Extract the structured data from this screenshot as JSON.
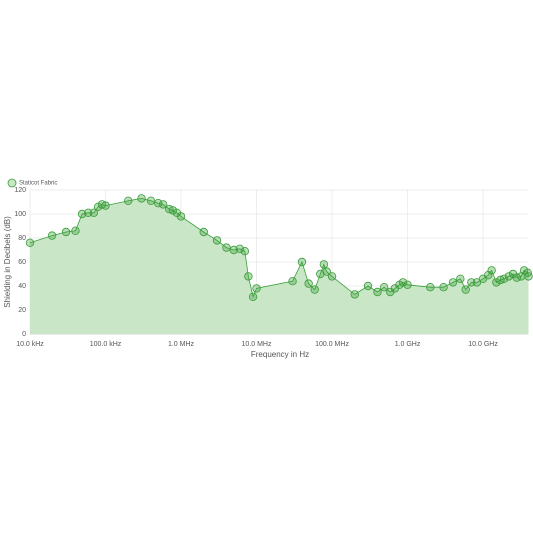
{
  "chart_data": {
    "type": "area",
    "xlabel": "Frequency in Hz",
    "ylabel": "Shielding in Decibels (dB)",
    "xscale": "log",
    "grid": true,
    "legend": "top-left",
    "x": [
      10000,
      19600,
      30000,
      40000,
      49000,
      59000,
      70000,
      80000,
      90000,
      100000,
      200000,
      300000,
      400000,
      500000,
      580000,
      700000,
      780000,
      880000,
      1000000,
      2000000,
      3000000,
      4000000,
      5000000,
      6000000,
      7000000,
      7800000,
      9000000,
      10000000,
      30000000,
      40000000,
      49000000,
      59000000,
      70000000,
      78000000,
      85000000,
      100000000,
      200000000,
      300000000,
      400000000,
      490000000,
      590000000,
      680000000,
      780000000,
      870000000,
      1000000000,
      2000000000,
      3000000000,
      4000000000,
      5000000000,
      5900000000,
      7000000000,
      8300000000,
      10000000000,
      11700000000,
      13000000000,
      15000000000,
      17000000000,
      19000000000,
      22000000000,
      25000000000,
      28000000000,
      32000000000,
      35000000000,
      39000000000,
      40000000000
    ],
    "series": [
      {
        "name": "Staticot Fabric",
        "color": "#3a9e3a",
        "fill": "#c9e6c6",
        "values": [
          76,
          82,
          85,
          86,
          100,
          101,
          101,
          106,
          108,
          107,
          111,
          113,
          111,
          109,
          108,
          104,
          103,
          101,
          98,
          85,
          78,
          72,
          70,
          71,
          69,
          48,
          31,
          38,
          44,
          60,
          42,
          37,
          50,
          58,
          52,
          48,
          33,
          40,
          35,
          39,
          35,
          38,
          41,
          43,
          41,
          39,
          39,
          43,
          46,
          37,
          43,
          43,
          46,
          49,
          53,
          43,
          45,
          46,
          48,
          50,
          47,
          48,
          53,
          51,
          48
        ]
      }
    ],
    "xlim": [
      10000,
      40000000000
    ],
    "ylim": [
      0,
      120
    ],
    "xticks": [
      {
        "value": 10000,
        "label": "10.0 kHz"
      },
      {
        "value": 100000,
        "label": "100.0 kHz"
      },
      {
        "value": 1000000,
        "label": "1.0 MHz"
      },
      {
        "value": 10000000,
        "label": "10.0 MHz"
      },
      {
        "value": 100000000,
        "label": "100.0 MHz"
      },
      {
        "value": 1000000000,
        "label": "1.0 GHz"
      },
      {
        "value": 10000000000,
        "label": "10.0 GHz"
      }
    ],
    "yticks": [
      0,
      20,
      40,
      60,
      80,
      100,
      120
    ]
  }
}
